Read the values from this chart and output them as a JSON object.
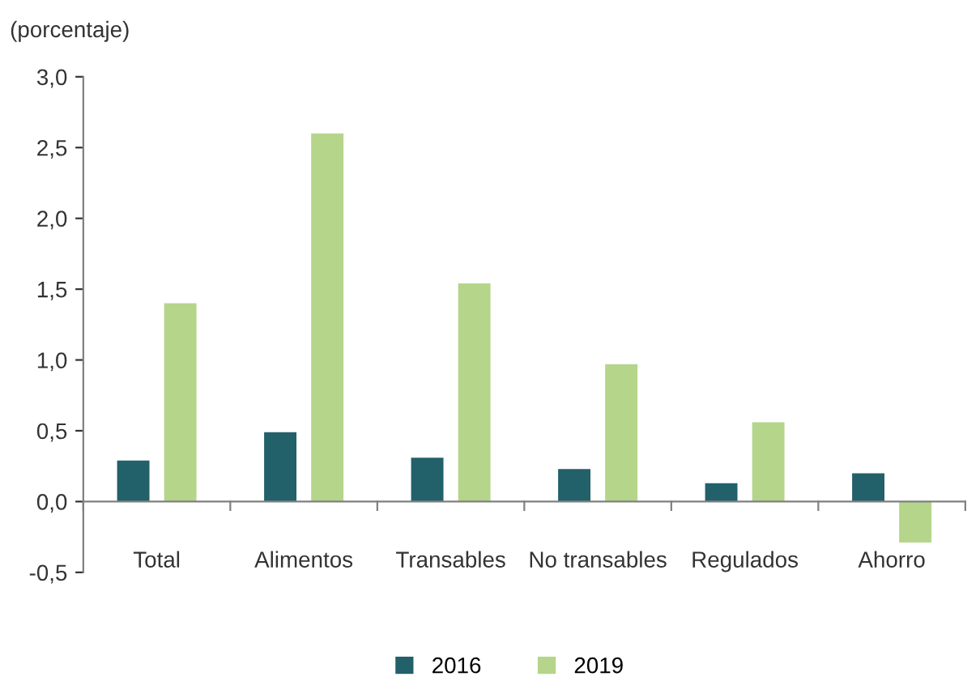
{
  "chart_data": {
    "type": "bar",
    "ylabel": "(porcentaje)",
    "categories": [
      "Total",
      "Alimentos",
      "Transables",
      "No transables",
      "Regulados",
      "Ahorro"
    ],
    "series": [
      {
        "name": "2016",
        "color": "#22606a",
        "values": [
          0.29,
          0.49,
          0.31,
          0.23,
          0.13,
          0.2
        ]
      },
      {
        "name": "2019",
        "color": "#b5d58a",
        "values": [
          1.4,
          2.6,
          1.54,
          0.97,
          0.56,
          -0.29
        ]
      }
    ],
    "ylim": [
      -0.5,
      3.0
    ],
    "yticks": [
      {
        "value": -0.5,
        "label": "-0,5"
      },
      {
        "value": 0,
        "label": "0,0"
      },
      {
        "value": 0.5,
        "label": "0,5"
      },
      {
        "value": 1.0,
        "label": "1,0"
      },
      {
        "value": 1.5,
        "label": "1,5"
      },
      {
        "value": 2.0,
        "label": "2,0"
      },
      {
        "value": 2.5,
        "label": "2,5"
      },
      {
        "value": 3.0,
        "label": "3,0"
      }
    ],
    "grid": false,
    "legend": "bottom"
  }
}
